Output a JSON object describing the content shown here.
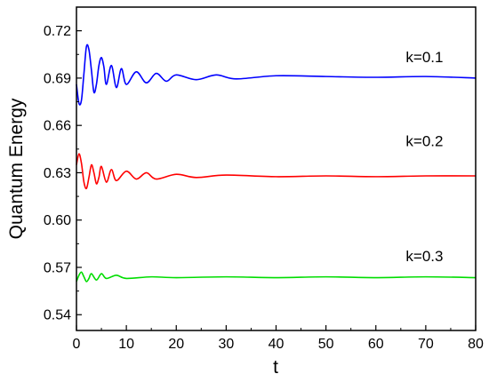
{
  "chart_data": {
    "type": "line",
    "xlabel": "t",
    "ylabel": "Quantum Energy",
    "xlim": [
      0,
      80
    ],
    "ylim": [
      0.53,
      0.735
    ],
    "x_ticks": [
      0,
      10,
      20,
      30,
      40,
      50,
      60,
      70,
      80
    ],
    "x_tick_labels": [
      "0",
      "10",
      "20",
      "30",
      "40",
      "50",
      "60",
      "70",
      "80"
    ],
    "y_ticks": [
      0.54,
      0.57,
      0.6,
      0.63,
      0.66,
      0.69,
      0.72
    ],
    "y_tick_labels": [
      "0.54",
      "0.57",
      "0.60",
      "0.63",
      "0.66",
      "0.69",
      "0.72"
    ],
    "grid": false,
    "series": [
      {
        "label": "k=0.1",
        "color": "#0000ff",
        "label_at": [
          66,
          0.7
        ],
        "x": [
          0,
          0.5,
          1,
          1.5,
          2,
          2.5,
          3,
          3.5,
          4,
          4.5,
          5,
          5.5,
          6,
          7,
          8,
          9,
          10,
          12,
          14,
          16,
          18,
          20,
          24,
          28,
          32,
          40,
          50,
          60,
          70,
          80
        ],
        "y": [
          0.686,
          0.674,
          0.676,
          0.693,
          0.71,
          0.708,
          0.695,
          0.681,
          0.686,
          0.698,
          0.703,
          0.697,
          0.686,
          0.698,
          0.684,
          0.696,
          0.686,
          0.694,
          0.687,
          0.693,
          0.688,
          0.692,
          0.689,
          0.692,
          0.6895,
          0.6915,
          0.691,
          0.6905,
          0.691,
          0.69
        ]
      },
      {
        "label": "k=0.2",
        "color": "#ff0000",
        "label_at": [
          66,
          0.647
        ],
        "x": [
          0,
          0.5,
          1,
          1.5,
          2,
          2.5,
          3,
          3.5,
          4,
          4.5,
          5,
          6,
          7,
          8,
          10,
          12,
          14,
          16,
          20,
          24,
          30,
          40,
          50,
          60,
          70,
          80
        ],
        "y": [
          0.635,
          0.642,
          0.636,
          0.624,
          0.62,
          0.627,
          0.635,
          0.63,
          0.623,
          0.627,
          0.634,
          0.624,
          0.632,
          0.625,
          0.631,
          0.626,
          0.63,
          0.626,
          0.629,
          0.627,
          0.6285,
          0.6275,
          0.628,
          0.6275,
          0.628,
          0.628
        ]
      },
      {
        "label": "k=0.3",
        "color": "#00dd00",
        "label_at": [
          66,
          0.574
        ],
        "x": [
          0,
          0.5,
          1,
          1.5,
          2,
          2.5,
          3,
          4,
          5,
          6,
          8,
          10,
          15,
          20,
          30,
          40,
          50,
          60,
          70,
          80
        ],
        "y": [
          0.561,
          0.565,
          0.567,
          0.564,
          0.561,
          0.563,
          0.566,
          0.562,
          0.566,
          0.563,
          0.565,
          0.563,
          0.564,
          0.5635,
          0.564,
          0.5635,
          0.564,
          0.5635,
          0.564,
          0.5635
        ]
      }
    ]
  }
}
